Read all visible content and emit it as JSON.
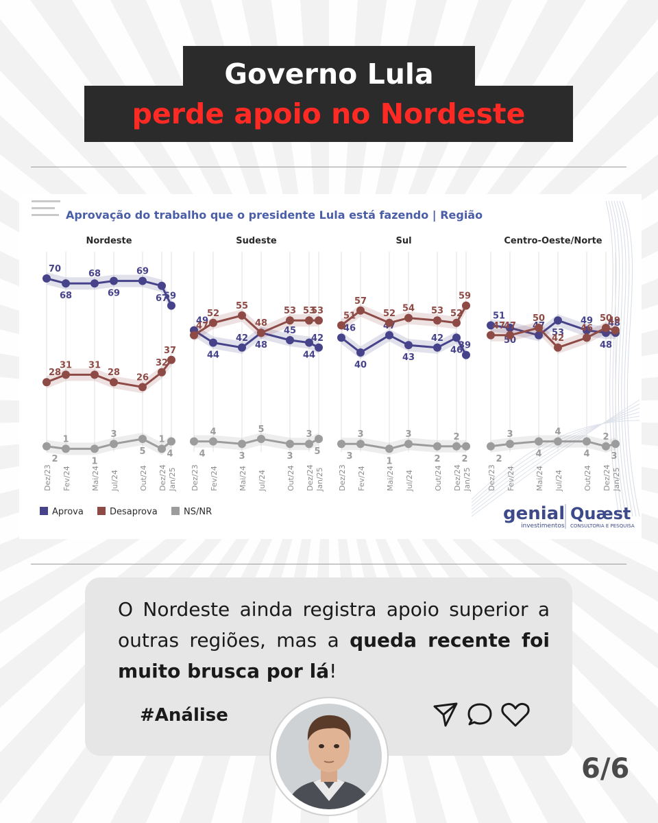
{
  "headline": {
    "line1": "Governo Lula",
    "line2": "perde apoio no Nordeste"
  },
  "chart_data": {
    "type": "line",
    "title": "Aprovação do trabalho que o presidente Lula está fazendo | Região",
    "x": [
      "Dez/23",
      "Fev/24",
      "Mai/24",
      "Jul/24",
      "Out/24",
      "Dez/24",
      "Jan/25"
    ],
    "x_months": [
      0,
      2,
      5,
      7,
      10,
      12,
      13
    ],
    "ylim": [
      0,
      100
    ],
    "legend": [
      {
        "name": "Aprova",
        "color": "#46438a"
      },
      {
        "name": "Desaprova",
        "color": "#8e4a45"
      },
      {
        "name": "NS/NR",
        "color": "#9c9c9c"
      }
    ],
    "legend_position": "bottom-left",
    "grid": true,
    "panels": [
      {
        "name": "Nordeste",
        "series": [
          {
            "name": "Aprova",
            "values": [
              70,
              68,
              68,
              69,
              69,
              67,
              59
            ]
          },
          {
            "name": "Desaprova",
            "values": [
              28,
              31,
              31,
              28,
              26,
              32,
              37
            ]
          },
          {
            "name": "NS/NR",
            "values": [
              2,
              1,
              1,
              3,
              5,
              1,
              4
            ]
          }
        ]
      },
      {
        "name": "Sudeste",
        "series": [
          {
            "name": "Aprova",
            "values": [
              49,
              44,
              42,
              48,
              45,
              44,
              42
            ]
          },
          {
            "name": "Desaprova",
            "values": [
              47,
              52,
              55,
              48,
              53,
              53,
              53
            ]
          },
          {
            "name": "NS/NR",
            "values": [
              4,
              4,
              3,
              5,
              3,
              3,
              5
            ]
          }
        ]
      },
      {
        "name": "Sul",
        "series": [
          {
            "name": "Aprova",
            "values": [
              46,
              40,
              47,
              43,
              42,
              46,
              39
            ]
          },
          {
            "name": "Desaprova",
            "values": [
              51,
              57,
              52,
              54,
              53,
              52,
              59
            ]
          },
          {
            "name": "NS/NR",
            "values": [
              3,
              3,
              1,
              3,
              2,
              2,
              2
            ]
          }
        ]
      },
      {
        "name": "Centro-Oeste/Norte",
        "series": [
          {
            "name": "Aprova",
            "values": [
              51,
              50,
              47,
              53,
              49,
              48,
              48
            ]
          },
          {
            "name": "Desaprova",
            "values": [
              47,
              47,
              50,
              42,
              46,
              50,
              49
            ]
          },
          {
            "name": "NS/NR",
            "values": [
              2,
              3,
              4,
              4,
              4,
              2,
              3
            ]
          }
        ]
      }
    ],
    "source_logos": [
      "genial",
      "investimentos",
      "Quæst",
      "CONSULTORIA E PESQUISA"
    ]
  },
  "quote": {
    "text_start": "O Nordeste ainda registra apoio superior a outras regiões, mas a ",
    "text_bold": "queda recente foi muito brusca por lá",
    "text_end": "!",
    "hashtag": "#Análise"
  },
  "icons": [
    "send-icon",
    "comment-icon",
    "heart-icon"
  ],
  "page_indicator": "6/6",
  "colors": {
    "headline_bg": "#2b2b2b",
    "headline_white": "#ffffff",
    "headline_red": "#ff2a24",
    "title_blue": "#4a5ea8",
    "approve": "#46438a",
    "disapprove": "#8e4a45",
    "nsnr": "#9c9c9c"
  }
}
